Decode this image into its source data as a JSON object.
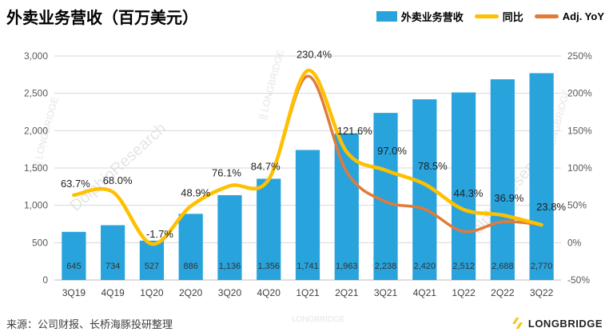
{
  "title": "外卖业务营收（百万美元）",
  "legend": [
    {
      "label": "外卖业务营收",
      "type": "bar",
      "color": "#29A3DC"
    },
    {
      "label": "同比",
      "type": "line",
      "color": "#FFC000"
    },
    {
      "label": "Adj. YoY",
      "type": "line",
      "color": "#E07B39"
    }
  ],
  "source": "来源：公司财报、长桥海豚投研整理",
  "logo_text": "LONGBRIDGE",
  "watermark": {
    "brand": "LONGBRIDGE",
    "research": "DolphinResearch"
  },
  "chart_data": {
    "type": "bar",
    "title": "外卖业务营收（百万美元）",
    "categories": [
      "3Q19",
      "4Q19",
      "1Q20",
      "2Q20",
      "3Q20",
      "4Q20",
      "1Q21",
      "2Q21",
      "3Q21",
      "4Q21",
      "1Q22",
      "2Q22",
      "3Q22"
    ],
    "series": [
      {
        "name": "外卖业务营收",
        "type": "bar",
        "axis": "left",
        "color": "#29A3DC",
        "values": [
          645,
          734,
          527,
          886,
          1136,
          1356,
          1741,
          1963,
          2238,
          2420,
          2512,
          2688,
          2770
        ],
        "labels": [
          "645",
          "734",
          "527",
          "886",
          "1,136",
          "1,356",
          "1,741",
          "1,963",
          "2,238",
          "2,420",
          "2,512",
          "2,688",
          "2,770"
        ]
      },
      {
        "name": "同比",
        "type": "line",
        "axis": "right",
        "color": "#FFC000",
        "values": [
          63.7,
          68.0,
          -1.7,
          48.9,
          76.1,
          84.7,
          230.4,
          121.6,
          97.0,
          78.5,
          44.3,
          36.9,
          23.8
        ],
        "labels": [
          "63.7%",
          "68.0%",
          "-1.7%",
          "48.9%",
          "76.1%",
          "84.7%",
          "230.4%",
          "121.6%",
          "97.0%",
          "78.5%",
          "44.3%",
          "36.9%",
          "23.8%"
        ]
      },
      {
        "name": "Adj. YoY",
        "type": "line",
        "axis": "right",
        "color": "#E07B39",
        "estimated": true,
        "values": [
          63.7,
          68.0,
          -1.7,
          48.9,
          76.1,
          84.7,
          223.0,
          95.0,
          55.0,
          45.0,
          15.0,
          28.0,
          24.0
        ]
      }
    ],
    "left_axis": {
      "min": 0,
      "max": 3000,
      "ticks": [
        "3,000",
        "2,500",
        "2,000",
        "1,500",
        "1,000",
        "500",
        "0"
      ]
    },
    "right_axis": {
      "min": -50,
      "max": 250,
      "ticks": [
        "250%",
        "200%",
        "150%",
        "100%",
        "50%",
        "0%",
        "-50%"
      ]
    },
    "grid": true,
    "legend_position": "top-right"
  }
}
